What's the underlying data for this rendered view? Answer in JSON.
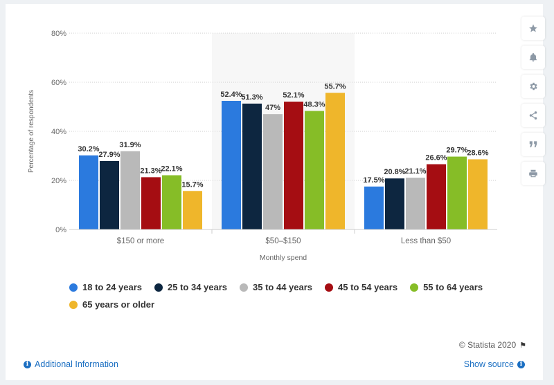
{
  "chart_data": {
    "type": "bar",
    "title": "",
    "xlabel": "Monthly spend",
    "ylabel": "Percentage of respondents",
    "categories": [
      "$150 or more",
      "$50–$150",
      "Less than $50"
    ],
    "ylim": [
      0,
      80
    ],
    "yticks": [
      "0%",
      "20%",
      "40%",
      "60%",
      "80%"
    ],
    "grid": true,
    "legend_position": "bottom",
    "series": [
      {
        "name": "18 to 24 years",
        "color": "#2b7ade",
        "values": [
          30.2,
          52.4,
          17.5
        ],
        "labels": [
          "30.2%",
          "52.4%",
          "17.5%"
        ]
      },
      {
        "name": "25 to 34 years",
        "color": "#0d2640",
        "values": [
          27.9,
          51.3,
          20.8
        ],
        "labels": [
          "27.9%",
          "51.3%",
          "20.8%"
        ]
      },
      {
        "name": "35 to 44 years",
        "color": "#b9b9b9",
        "values": [
          31.9,
          47,
          21.1
        ],
        "labels": [
          "31.9%",
          "47%",
          "21.1%"
        ]
      },
      {
        "name": "45 to 54 years",
        "color": "#a50d12",
        "values": [
          21.3,
          52.1,
          26.6
        ],
        "labels": [
          "21.3%",
          "52.1%",
          "26.6%"
        ]
      },
      {
        "name": "55 to 64 years",
        "color": "#86bd27",
        "values": [
          22.1,
          48.3,
          29.7
        ],
        "labels": [
          "22.1%",
          "48.3%",
          "29.7%"
        ]
      },
      {
        "name": "65 years or older",
        "color": "#efb62b",
        "values": [
          15.7,
          55.7,
          28.6
        ],
        "labels": [
          "15.7%",
          "55.7%",
          "28.6%"
        ]
      }
    ]
  },
  "toolbar": {
    "icons": [
      "star-icon",
      "bell-icon",
      "gear-icon",
      "share-icon",
      "quote-icon",
      "print-icon"
    ]
  },
  "footer": {
    "credit": "© Statista 2020",
    "additional_info": "Additional Information",
    "show_source": "Show source"
  }
}
